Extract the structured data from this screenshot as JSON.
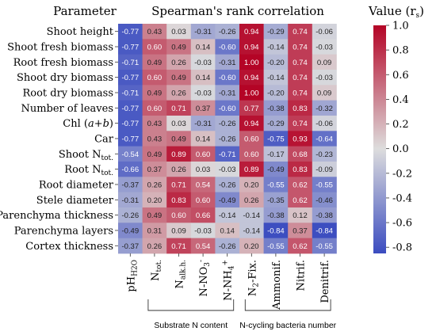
{
  "chart_data": {
    "type": "heatmap",
    "header_left": "Parameter",
    "title": "Spearman's rank correlation",
    "colorbar_label": "Value (r",
    "colorbar_label_sub": "s",
    "colorbar_label_end": ")",
    "colorbar_ticks": [
      1.0,
      0.8,
      0.6,
      0.4,
      0.2,
      0.0,
      -0.2,
      -0.4,
      -0.6,
      -0.8
    ],
    "vmin": -0.85,
    "vmax": 1.0,
    "colors": {
      "negative": "#3b4cc0",
      "neutral": "#dddddd",
      "positive": "#b40426"
    },
    "rows": [
      "Shoot height",
      "Shoot fresh biomass",
      "Root fresh biomass",
      "Shoot dry biomass",
      "Root dry biomass",
      "Number of leaves",
      "Chl (a+b)",
      "Car",
      "Shoot N",
      "Root N",
      "Root diameter",
      "Stele diameter",
      "Parenchyma thickness",
      "Parenchyma layers",
      "Cortex thickness"
    ],
    "row_subscripts": [
      "",
      "",
      "",
      "",
      "",
      "",
      "",
      "",
      "tot.",
      "tot.",
      "",
      "",
      "",
      "",
      ""
    ],
    "columns": [
      {
        "main": "pH",
        "sub": "H2O",
        "tail": ""
      },
      {
        "main": "N",
        "sub": "tot.",
        "tail": ""
      },
      {
        "main": "N",
        "sub": "alk.h.",
        "tail": ""
      },
      {
        "main": "N-NO",
        "sub": "3",
        "tail": "-"
      },
      {
        "main": "N-NH",
        "sub": "4",
        "tail": "+"
      },
      {
        "main": "N",
        "sub": "2",
        "tail": "-Fix."
      },
      {
        "main": "Ammonif.",
        "sub": "",
        "tail": ""
      },
      {
        "main": "Nitrif.",
        "sub": "",
        "tail": ""
      },
      {
        "main": "Denitrif.",
        "sub": "",
        "tail": ""
      }
    ],
    "values": [
      [
        -0.77,
        0.43,
        0.03,
        -0.31,
        -0.26,
        0.94,
        -0.29,
        0.74,
        -0.06
      ],
      [
        -0.77,
        0.6,
        0.49,
        0.14,
        -0.6,
        0.94,
        -0.14,
        0.74,
        -0.03
      ],
      [
        -0.71,
        0.49,
        0.26,
        -0.03,
        -0.31,
        1.0,
        -0.2,
        0.74,
        0.09
      ],
      [
        -0.77,
        0.6,
        0.49,
        0.14,
        -0.6,
        0.94,
        -0.14,
        0.74,
        -0.03
      ],
      [
        -0.71,
        0.49,
        0.26,
        -0.03,
        -0.31,
        1.0,
        -0.2,
        0.74,
        0.09
      ],
      [
        -0.77,
        0.6,
        0.71,
        0.37,
        -0.6,
        0.77,
        -0.38,
        0.83,
        -0.32
      ],
      [
        -0.77,
        0.43,
        0.03,
        -0.31,
        -0.26,
        0.94,
        -0.29,
        0.74,
        -0.06
      ],
      [
        -0.77,
        0.43,
        0.49,
        0.14,
        -0.26,
        0.6,
        -0.75,
        0.93,
        -0.64
      ],
      [
        -0.54,
        0.49,
        0.89,
        0.6,
        -0.71,
        0.6,
        -0.17,
        0.68,
        -0.23
      ],
      [
        -0.66,
        0.37,
        0.26,
        0.03,
        -0.03,
        0.89,
        -0.49,
        0.83,
        -0.09
      ],
      [
        -0.37,
        0.26,
        0.71,
        0.54,
        -0.26,
        0.2,
        -0.55,
        0.62,
        -0.55
      ],
      [
        -0.31,
        0.2,
        0.83,
        0.6,
        -0.49,
        0.26,
        -0.35,
        0.62,
        -0.46
      ],
      [
        -0.26,
        0.49,
        0.6,
        0.66,
        -0.14,
        -0.14,
        -0.38,
        0.12,
        -0.38
      ],
      [
        -0.49,
        0.31,
        0.09,
        -0.03,
        0.14,
        -0.14,
        -0.84,
        0.37,
        -0.84
      ],
      [
        -0.37,
        0.26,
        0.71,
        0.54,
        -0.26,
        0.2,
        -0.55,
        0.62,
        -0.55
      ]
    ],
    "groups": [
      {
        "label": "Substrate N content",
        "from": 1,
        "to": 4
      },
      {
        "label": "N-cycling bacteria number",
        "from": 5,
        "to": 8
      }
    ]
  }
}
